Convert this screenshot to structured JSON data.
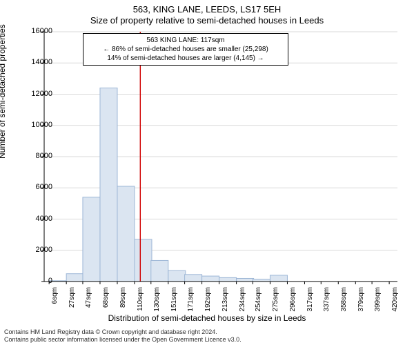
{
  "title_line1": "563, KING LANE, LEEDS, LS17 5EH",
  "title_line2": "Size of property relative to semi-detached houses in Leeds",
  "chart": {
    "type": "histogram",
    "background_color": "#ffffff",
    "bar_fill": "#dbe5f1",
    "bar_stroke": "#9db6d6",
    "grid_color": "#d9d9d9",
    "axis_color": "#000000",
    "reference_line_color": "#d00000",
    "xlim": [
      0,
      430
    ],
    "ylim": [
      0,
      16000
    ],
    "ytick_step": 2000,
    "yticks": [
      0,
      2000,
      4000,
      6000,
      8000,
      10000,
      12000,
      14000,
      16000
    ],
    "ylabel": "Number of semi-detached properties",
    "xlabel": "Distribution of semi-detached houses by size in Leeds",
    "xticks": [
      {
        "v": 6,
        "label": "6sqm"
      },
      {
        "v": 27,
        "label": "27sqm"
      },
      {
        "v": 47,
        "label": "47sqm"
      },
      {
        "v": 68,
        "label": "68sqm"
      },
      {
        "v": 89,
        "label": "89sqm"
      },
      {
        "v": 110,
        "label": "110sqm"
      },
      {
        "v": 130,
        "label": "130sqm"
      },
      {
        "v": 151,
        "label": "151sqm"
      },
      {
        "v": 171,
        "label": "171sqm"
      },
      {
        "v": 192,
        "label": "192sqm"
      },
      {
        "v": 213,
        "label": "213sqm"
      },
      {
        "v": 234,
        "label": "234sqm"
      },
      {
        "v": 254,
        "label": "254sqm"
      },
      {
        "v": 275,
        "label": "275sqm"
      },
      {
        "v": 296,
        "label": "296sqm"
      },
      {
        "v": 317,
        "label": "317sqm"
      },
      {
        "v": 337,
        "label": "337sqm"
      },
      {
        "v": 358,
        "label": "358sqm"
      },
      {
        "v": 379,
        "label": "379sqm"
      },
      {
        "v": 399,
        "label": "399sqm"
      },
      {
        "v": 420,
        "label": "420sqm"
      }
    ],
    "bins": [
      {
        "x": 6,
        "count": 50
      },
      {
        "x": 27,
        "count": 500
      },
      {
        "x": 47,
        "count": 5400
      },
      {
        "x": 68,
        "count": 12400
      },
      {
        "x": 89,
        "count": 6100
      },
      {
        "x": 110,
        "count": 2700
      },
      {
        "x": 130,
        "count": 1350
      },
      {
        "x": 151,
        "count": 700
      },
      {
        "x": 171,
        "count": 450
      },
      {
        "x": 192,
        "count": 350
      },
      {
        "x": 213,
        "count": 250
      },
      {
        "x": 234,
        "count": 200
      },
      {
        "x": 254,
        "count": 150
      },
      {
        "x": 275,
        "count": 400
      },
      {
        "x": 296,
        "count": 0
      },
      {
        "x": 317,
        "count": 0
      },
      {
        "x": 337,
        "count": 0
      },
      {
        "x": 358,
        "count": 0
      },
      {
        "x": 379,
        "count": 0
      },
      {
        "x": 399,
        "count": 0
      }
    ],
    "bin_width": 21,
    "reference_value": 117,
    "label_fontsize": 12,
    "tick_fontsize": 11,
    "xtick_fontsize": 10
  },
  "legend": {
    "line1": "563 KING LANE: 117sqm",
    "line2": "← 86% of semi-detached houses are smaller (25,298)",
    "line3": "14% of semi-detached houses are larger (4,145) →",
    "border_color": "#000000",
    "background_color": "#ffffff",
    "fontsize": 10
  },
  "attribution": {
    "line1": "Contains HM Land Registry data © Crown copyright and database right 2024.",
    "line2": "Contains public sector information licensed under the Open Government Licence v3.0.",
    "color": "#2e2e2e",
    "fontsize": 9
  }
}
